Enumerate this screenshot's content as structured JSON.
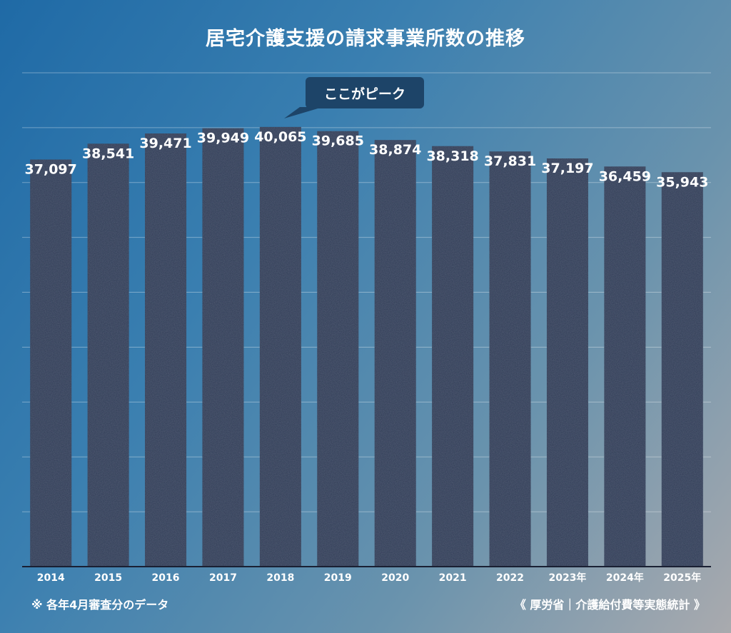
{
  "chart_data": {
    "type": "bar",
    "title": "居宅介護支援の請求事業所数の推移",
    "categories": [
      "2014",
      "2015",
      "2016",
      "2017",
      "2018",
      "2019",
      "2020",
      "2021",
      "2022",
      "2023年",
      "2024年",
      "2025年"
    ],
    "values": [
      37097,
      38541,
      39471,
      39949,
      40065,
      39685,
      38874,
      38318,
      37831,
      37197,
      36459,
      35943
    ],
    "data_labels": [
      "37,097",
      "38,541",
      "39,471",
      "39,949",
      "40,065",
      "39,685",
      "38,874",
      "38,318",
      "37,831",
      "37,197",
      "36,459",
      "35,943"
    ],
    "xlabel": "",
    "ylabel": "",
    "ylim": [
      0,
      45000
    ],
    "grid": true,
    "bar_color": "#2e3a55",
    "annotation": {
      "text": "ここがピーク",
      "target": "2018"
    }
  },
  "footnote": "※ 各年4月審査分のデータ",
  "source": "《 厚労省｜介護給付費等実態統計 》"
}
